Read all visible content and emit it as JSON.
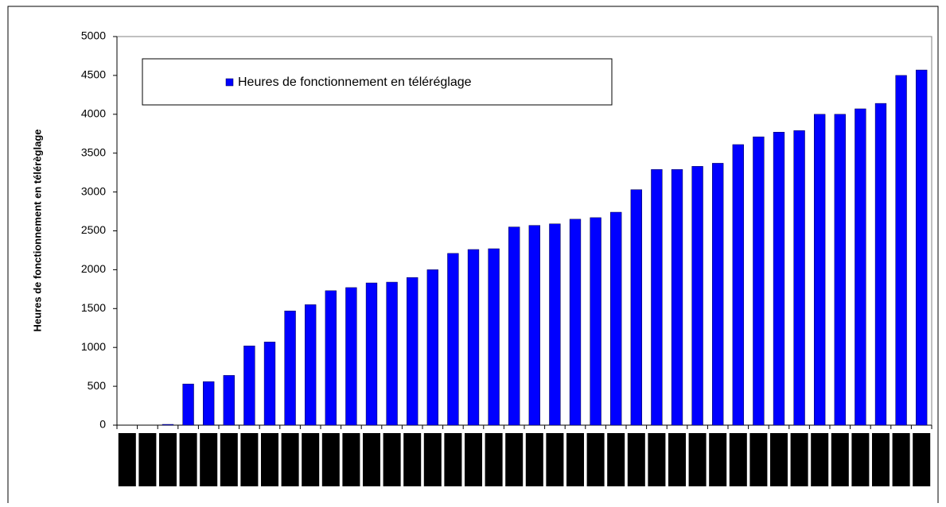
{
  "chart_data": {
    "type": "bar",
    "y_label": "Heures de fonctionnement en télérèglage",
    "legend": "Heures de fonctionnement en téléréglage",
    "categories": [
      null,
      null,
      null,
      null,
      null,
      null,
      null,
      null,
      null,
      null,
      null,
      null,
      null,
      null,
      null,
      null,
      null,
      null,
      null,
      null,
      null,
      null,
      null,
      null,
      null,
      null,
      null,
      null,
      null,
      null,
      null,
      null,
      null,
      null,
      null,
      null,
      null,
      null,
      null,
      null
    ],
    "series": [
      {
        "name": "Heures de fonctionnement en téléréglage",
        "color": "#0000ff",
        "values": [
          0,
          0,
          10,
          530,
          560,
          640,
          1020,
          1070,
          1470,
          1550,
          1730,
          1770,
          1830,
          1840,
          1900,
          2000,
          2210,
          2260,
          2270,
          2550,
          2570,
          2590,
          2650,
          2670,
          2740,
          3030,
          3290,
          3290,
          3330,
          3370,
          3610,
          3710,
          3770,
          3790,
          4000,
          4000,
          4070,
          4140,
          4500,
          4570
        ]
      }
    ],
    "ylim": [
      0,
      5000
    ],
    "yticks": [
      0,
      500,
      1000,
      1500,
      2000,
      2500,
      3000,
      3500,
      4000,
      4500,
      5000
    ],
    "grid": false,
    "legend_position": "top-left"
  }
}
